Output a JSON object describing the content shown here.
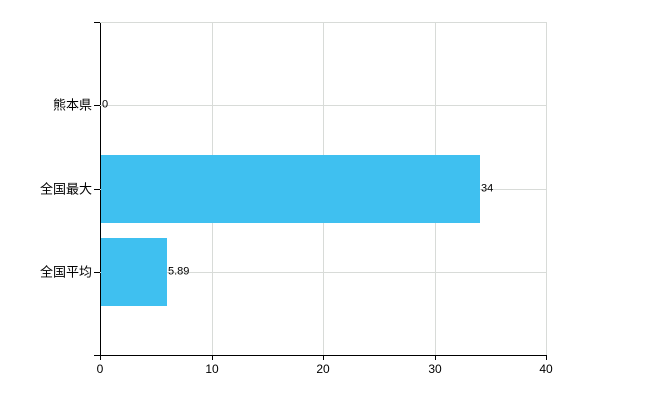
{
  "chart_data": {
    "type": "bar",
    "orientation": "horizontal",
    "title": "",
    "xlabel": "",
    "ylabel": "",
    "categories": [
      "熊本県",
      "全国最大",
      "全国平均"
    ],
    "values": [
      0,
      34,
      5.89
    ],
    "value_labels": [
      "0",
      "34",
      "5.89"
    ],
    "x_ticks": [
      0,
      10,
      20,
      30,
      40
    ],
    "x_tick_labels": [
      "0",
      "10",
      "20",
      "30",
      "40"
    ],
    "xlim": [
      0,
      40
    ],
    "grid": "on",
    "legend": "none",
    "colors": {
      "bar": "#3FC0F0",
      "gridline": "#D8DBD8",
      "axis": "#000000",
      "text": "#000000",
      "background": "#FFFFFF"
    }
  }
}
